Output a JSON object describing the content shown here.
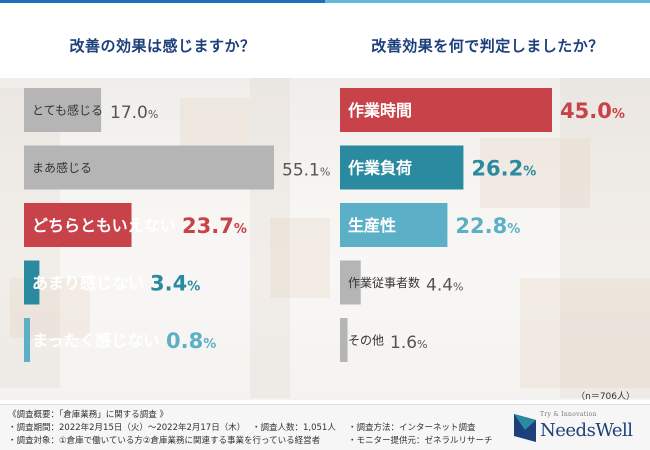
{
  "colors": {
    "red": "#c8424a",
    "teal": "#2a8aa0",
    "light_blue": "#5bb0c8",
    "gray": "#b5b5b5",
    "heading": "#1d3f7a"
  },
  "chart_data": [
    {
      "type": "bar",
      "orientation": "horizontal",
      "title": "改善の効果は感じますか？",
      "xlim": [
        0,
        100
      ],
      "unit": "%",
      "categories": [
        "とても感じる",
        "まあ感じる",
        "どちらともいえない",
        "あまり感じない",
        "まったく感じない"
      ],
      "values": [
        17.0,
        55.1,
        23.7,
        3.4,
        0.8
      ],
      "value_labels": [
        "17.0",
        "55.1",
        "23.7",
        "3.4",
        "0.8"
      ],
      "bar_colors": [
        "gray",
        "gray",
        "red",
        "teal",
        "light_blue"
      ]
    },
    {
      "type": "bar",
      "orientation": "horizontal",
      "title": "改善効果を何で判定しましたか？",
      "xlim": [
        0,
        100
      ],
      "unit": "%",
      "categories": [
        "作業時間",
        "作業負荷",
        "生産性",
        "作業従事者数",
        "その他"
      ],
      "values": [
        45.0,
        26.2,
        22.8,
        4.4,
        1.6
      ],
      "value_labels": [
        "45.0",
        "26.2",
        "22.8",
        "4.4",
        "1.6"
      ],
      "bar_colors": [
        "red",
        "teal",
        "light_blue",
        "gray",
        "gray"
      ],
      "sample_note": "（n＝706人）"
    }
  ],
  "footer": {
    "overview": "《調査概要：「倉庫業務」に関する調査 》",
    "period": "・調査期間：2022年2月15日（火）〜2022年2月17日（木）",
    "respondents": "・調査人数：1,051人",
    "method": "・調査方法：インターネット調査",
    "target": "・調査対象：①倉庫で働いている方②倉庫業務に関連する事業を行っている経営者",
    "provider": "・モニター提供元：ゼネラルリサーチ"
  },
  "logo": {
    "tagline": "Try & Innovation",
    "name": "NeedsWell"
  }
}
